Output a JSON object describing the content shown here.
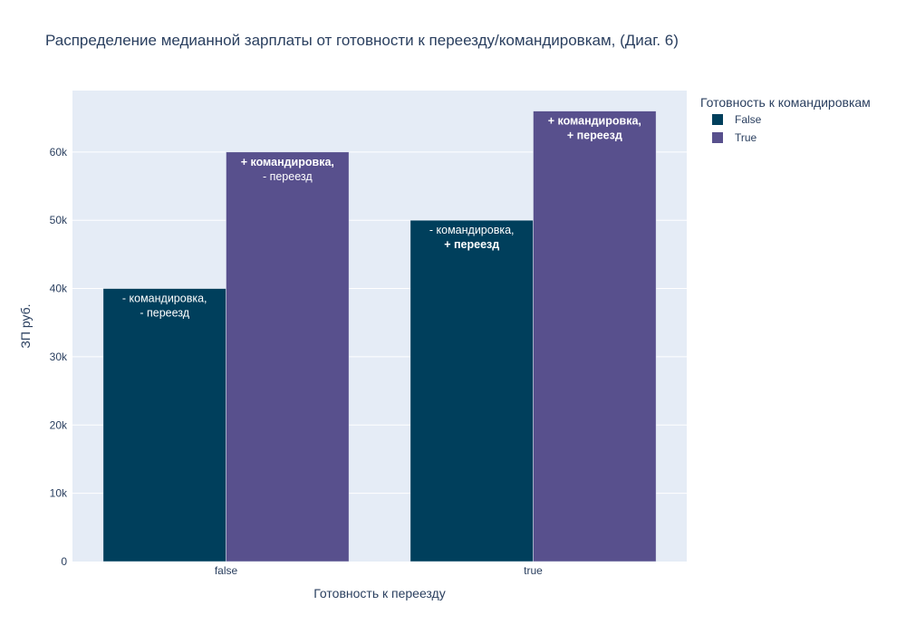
{
  "chart_data": {
    "type": "bar",
    "title": "Распределение медианной зарплаты от готовности к переезду/командировкам, (Диаг. 6)",
    "xlabel": "Готовность к переезду",
    "ylabel": "ЗП руб.",
    "categories": [
      "false",
      "true"
    ],
    "ylim": [
      0,
      69000
    ],
    "yticks": [
      0,
      10000,
      20000,
      30000,
      40000,
      50000,
      60000
    ],
    "ytick_labels": [
      "0",
      "10k",
      "20k",
      "30k",
      "40k",
      "50k",
      "60k"
    ],
    "grid": true,
    "legend": {
      "title": "Готовность к командировкам",
      "position": "top-right"
    },
    "series": [
      {
        "name": "False",
        "color": "#003f5c",
        "values": [
          40000,
          50000
        ],
        "labels": [
          [
            {
              "text": "- командировка,",
              "bold": false
            },
            {
              "text": "- переезд",
              "bold": false
            }
          ],
          [
            {
              "text": "- командировка,",
              "bold": false
            },
            {
              "text": "+ переезд",
              "bold": true
            }
          ]
        ]
      },
      {
        "name": "True",
        "color": "#58508d",
        "values": [
          60000,
          66000
        ],
        "labels": [
          [
            {
              "text": "+ командировка,",
              "bold": true
            },
            {
              "text": "- переезд",
              "bold": false
            }
          ],
          [
            {
              "text": "+ командировка,",
              "bold": true
            },
            {
              "text": "+ переезд",
              "bold": true
            }
          ]
        ]
      }
    ],
    "colors": {
      "plot_bg": "#e5ecf6",
      "grid": "#ffffff"
    }
  }
}
